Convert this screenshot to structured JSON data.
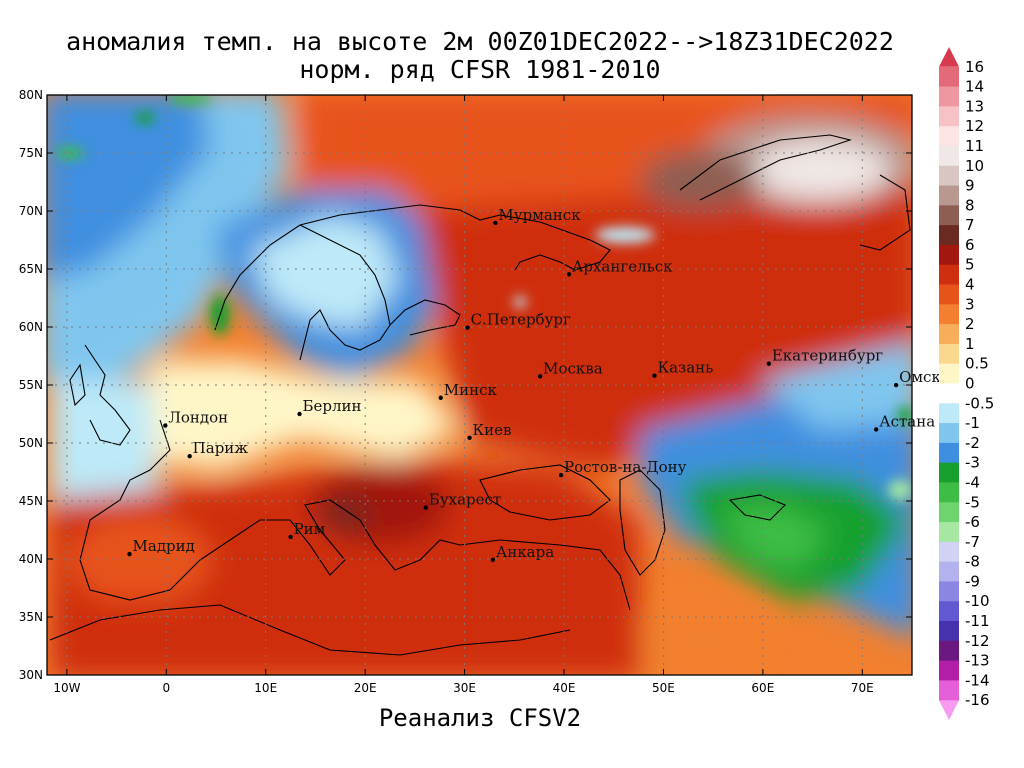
{
  "title_line1": "аномалия темп. на высоте 2м 00Z01DEC2022-->18Z31DEC2022",
  "title_line2": "норм. ряд CFSR 1981-2010",
  "footer": "Реанализ CFSV2",
  "lat_ticks": [
    "80N",
    "75N",
    "70N",
    "65N",
    "60N",
    "55N",
    "50N",
    "45N",
    "40N",
    "35N",
    "30N"
  ],
  "lon_ticks": [
    "10W",
    "0",
    "10E",
    "20E",
    "30E",
    "40E",
    "50E",
    "60E",
    "70E"
  ],
  "lat_values": [
    80,
    75,
    70,
    65,
    60,
    55,
    50,
    45,
    40,
    35,
    30
  ],
  "lon_values": [
    -10,
    0,
    10,
    20,
    30,
    40,
    50,
    60,
    70
  ],
  "extent": {
    "lon_min": -12,
    "lon_max": 75,
    "lat_min": 30,
    "lat_max": 80
  },
  "legend_levels": [
    "16",
    "14",
    "13",
    "12",
    "11",
    "10",
    "9",
    "8",
    "7",
    "6",
    "5",
    "4",
    "3",
    "2",
    "1",
    "0.5",
    "0",
    "-0.5",
    "-1",
    "-2",
    "-3",
    "-4",
    "-5",
    "-6",
    "-7",
    "-8",
    "-9",
    "-10",
    "-11",
    "-12",
    "-13",
    "-14",
    "-16"
  ],
  "legend_colors": [
    "#d63a4f",
    "#e36b79",
    "#ee97a0",
    "#f6c2c6",
    "#fde4e4",
    "#f0e8e6",
    "#d8c6c2",
    "#b89890",
    "#8e5e53",
    "#6a2a22",
    "#a3180e",
    "#cf2e10",
    "#e8531c",
    "#f2802f",
    "#f8ad5b",
    "#fcd88f",
    "#fff6c8",
    "#ffffff",
    "#bde9f8",
    "#7fc6ef",
    "#3f8fe0",
    "#17a02d",
    "#3dbd45",
    "#6fd46e",
    "#a6e7a2",
    "#d2d2f4",
    "#b3b2ef",
    "#8b86e4",
    "#6259d2",
    "#4732ad",
    "#6b1880",
    "#b21ea8",
    "#e55fd9",
    "#f79bf0"
  ],
  "cities": [
    {
      "name": "Мурманск",
      "lon": 33.1,
      "lat": 68.97
    },
    {
      "name": "Архангельск",
      "lon": 40.5,
      "lat": 64.54
    },
    {
      "name": "С.Петербург",
      "lon": 30.3,
      "lat": 59.94
    },
    {
      "name": "Москва",
      "lon": 37.6,
      "lat": 55.75
    },
    {
      "name": "Казань",
      "lon": 49.1,
      "lat": 55.8
    },
    {
      "name": "Екатеринбург",
      "lon": 60.6,
      "lat": 56.84
    },
    {
      "name": "Омск",
      "lon": 73.4,
      "lat": 54.99
    },
    {
      "name": "Астана",
      "lon": 71.4,
      "lat": 51.17
    },
    {
      "name": "Минск",
      "lon": 27.6,
      "lat": 53.9
    },
    {
      "name": "Киев",
      "lon": 30.5,
      "lat": 50.45
    },
    {
      "name": "Берлин",
      "lon": 13.4,
      "lat": 52.5
    },
    {
      "name": "Лондон",
      "lon": -0.1,
      "lat": 51.5
    },
    {
      "name": "Париж",
      "lon": 2.35,
      "lat": 48.86
    },
    {
      "name": "Ростов-на-Дону",
      "lon": 39.7,
      "lat": 47.23
    },
    {
      "name": "Бухарест",
      "lon": 26.1,
      "lat": 44.43
    },
    {
      "name": "Рим",
      "lon": 12.5,
      "lat": 41.9
    },
    {
      "name": "Мадрид",
      "lon": -3.7,
      "lat": 40.42
    },
    {
      "name": "Анкара",
      "lon": 32.85,
      "lat": 39.93
    }
  ],
  "anomaly_regions": [
    {
      "label": "north-atlantic-cold",
      "value": -1,
      "color": "#7fc6ef"
    },
    {
      "label": "scandinavia-cold",
      "value": -2,
      "color": "#3f8fe0"
    },
    {
      "label": "western-europe-neutral",
      "value": 0,
      "color": "#fff6c8"
    },
    {
      "label": "northern-russia-warm",
      "value": 4,
      "color": "#cf2e10"
    },
    {
      "label": "novaya-zemlya-very-warm",
      "value": 10,
      "color": "#d8c6c2"
    },
    {
      "label": "southern-europe-warm",
      "value": 4,
      "color": "#cf2e10"
    },
    {
      "label": "balkans-hot",
      "value": 6,
      "color": "#6a2a22"
    },
    {
      "label": "kazakhstan-cold",
      "value": -3,
      "color": "#17a02d"
    }
  ]
}
